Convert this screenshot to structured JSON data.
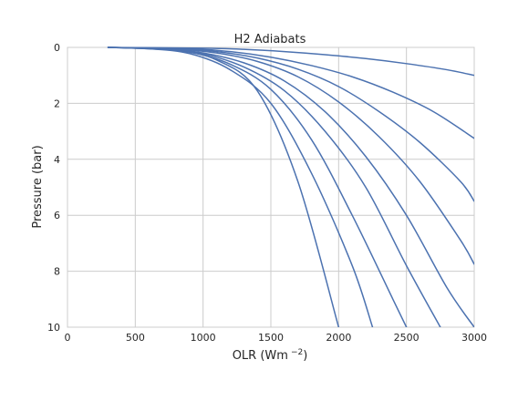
{
  "chart_data": {
    "type": "line",
    "title": "H2 Adiabats",
    "xlabel": "OLR (Wm",
    "xlabel_sup": "−2",
    "xlabel_close": ")",
    "ylabel": "Pressure (bar)",
    "xlim": [
      0,
      3000
    ],
    "ylim": [
      10,
      0
    ],
    "y_inverted": true,
    "grid": true,
    "x_ticks": [
      0,
      500,
      1000,
      1500,
      2000,
      2500,
      3000
    ],
    "y_ticks": [
      0,
      2,
      4,
      6,
      8,
      10
    ],
    "x_tick_labels": [
      "0",
      "500",
      "1000",
      "1500",
      "2000",
      "2500",
      "3000"
    ],
    "y_tick_labels": [
      "0",
      "2",
      "4",
      "6",
      "8",
      "10"
    ],
    "line_color": "#4c72b0",
    "series": [
      {
        "points": [
          [
            300,
            0
          ],
          [
            500,
            0.03
          ],
          [
            800,
            0.1
          ],
          [
            1100,
            0.45
          ],
          [
            1400,
            1.55
          ],
          [
            1700,
            4.8
          ],
          [
            2000,
            10
          ]
        ]
      },
      {
        "points": [
          [
            300,
            0
          ],
          [
            600,
            0.05
          ],
          [
            900,
            0.22
          ],
          [
            1200,
            0.8
          ],
          [
            1500,
            2.0
          ],
          [
            1800,
            4.5
          ],
          [
            2100,
            7.8
          ],
          [
            2250,
            10
          ]
        ]
      },
      {
        "points": [
          [
            300,
            0
          ],
          [
            600,
            0.05
          ],
          [
            900,
            0.17
          ],
          [
            1200,
            0.6
          ],
          [
            1500,
            1.5
          ],
          [
            1800,
            3.3
          ],
          [
            2100,
            6.0
          ],
          [
            2400,
            9.0
          ],
          [
            2500,
            10
          ]
        ]
      },
      {
        "points": [
          [
            300,
            0
          ],
          [
            700,
            0.06
          ],
          [
            1000,
            0.23
          ],
          [
            1300,
            0.7
          ],
          [
            1600,
            1.55
          ],
          [
            1900,
            3.0
          ],
          [
            2200,
            5.0
          ],
          [
            2500,
            7.8
          ],
          [
            2750,
            10
          ]
        ]
      },
      {
        "points": [
          [
            300,
            0
          ],
          [
            700,
            0.05
          ],
          [
            1000,
            0.2
          ],
          [
            1300,
            0.55
          ],
          [
            1600,
            1.2
          ],
          [
            1900,
            2.3
          ],
          [
            2200,
            3.9
          ],
          [
            2500,
            6.0
          ],
          [
            2800,
            8.6
          ],
          [
            3000,
            10
          ]
        ]
      },
      {
        "points": [
          [
            300,
            0
          ],
          [
            800,
            0.06
          ],
          [
            1100,
            0.2
          ],
          [
            1400,
            0.5
          ],
          [
            1700,
            1.05
          ],
          [
            2000,
            1.95
          ],
          [
            2300,
            3.2
          ],
          [
            2600,
            4.8
          ],
          [
            2900,
            6.9
          ],
          [
            3000,
            7.75
          ]
        ]
      },
      {
        "points": [
          [
            300,
            0
          ],
          [
            800,
            0.05
          ],
          [
            1100,
            0.15
          ],
          [
            1400,
            0.38
          ],
          [
            1700,
            0.78
          ],
          [
            2000,
            1.4
          ],
          [
            2300,
            2.3
          ],
          [
            2600,
            3.4
          ],
          [
            2900,
            4.8
          ],
          [
            3000,
            5.5
          ]
        ]
      },
      {
        "points": [
          [
            300,
            0
          ],
          [
            900,
            0.05
          ],
          [
            1200,
            0.15
          ],
          [
            1500,
            0.35
          ],
          [
            1800,
            0.65
          ],
          [
            2100,
            1.05
          ],
          [
            2400,
            1.6
          ],
          [
            2700,
            2.3
          ],
          [
            3000,
            3.25
          ]
        ]
      },
      {
        "points": [
          [
            300,
            0
          ],
          [
            1000,
            0.03
          ],
          [
            1300,
            0.07
          ],
          [
            1600,
            0.15
          ],
          [
            1900,
            0.26
          ],
          [
            2200,
            0.4
          ],
          [
            2500,
            0.58
          ],
          [
            2800,
            0.8
          ],
          [
            3000,
            1.0
          ]
        ]
      }
    ]
  }
}
